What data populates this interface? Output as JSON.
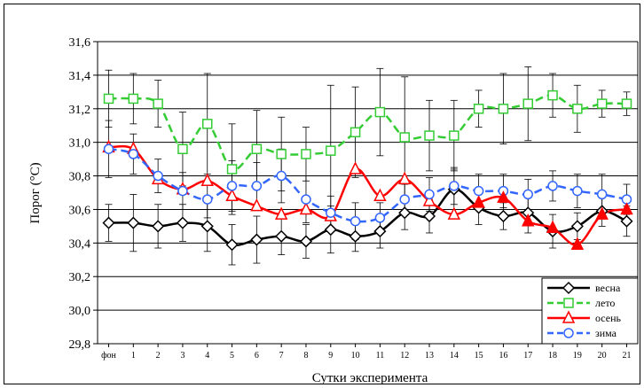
{
  "chart_data": {
    "type": "line",
    "xlabel": "Сутки эксперимента",
    "ylabel": "Порог (°С)",
    "categories": [
      "фон",
      "1",
      "2",
      "3",
      "4",
      "5",
      "6",
      "7",
      "8",
      "9",
      "10",
      "11",
      "12",
      "13",
      "14",
      "15",
      "16",
      "17",
      "18",
      "19",
      "20",
      "21"
    ],
    "ylim": [
      29.8,
      31.6
    ],
    "yticks": [
      "31,6",
      "31,4",
      "31,2",
      "31,0",
      "30,8",
      "30,6",
      "30,4",
      "30,2",
      "30,0",
      "29,8"
    ],
    "ytick_values": [
      31.6,
      31.4,
      31.2,
      31.0,
      30.8,
      30.6,
      30.4,
      30.2,
      30.0,
      29.8
    ],
    "grid": true,
    "legend_position": "bottom-right",
    "series": [
      {
        "name": "весна",
        "color": "#000000",
        "dash": "solid",
        "marker": "diamond",
        "values": [
          30.52,
          30.52,
          30.5,
          30.52,
          30.5,
          30.39,
          30.42,
          30.44,
          30.41,
          30.48,
          30.44,
          30.47,
          30.58,
          30.56,
          30.72,
          30.61,
          30.56,
          30.58,
          30.47,
          30.5,
          30.59,
          30.53
        ],
        "errors": [
          0.11,
          0.17,
          0.13,
          0.11,
          0.15,
          0.12,
          0.14,
          0.11,
          0.1,
          0.14,
          0.09,
          0.1,
          0.1,
          0.1,
          0.12,
          0.1,
          0.08,
          0.12,
          0.1,
          0.08,
          0.09,
          0.09
        ]
      },
      {
        "name": "лето",
        "color": "#33cc33",
        "dash": "dashed",
        "marker": "square-open",
        "values": [
          31.26,
          31.26,
          31.23,
          30.96,
          31.11,
          30.84,
          30.96,
          30.93,
          30.93,
          30.95,
          31.06,
          31.18,
          31.03,
          31.04,
          31.04,
          31.2,
          31.2,
          31.23,
          31.28,
          31.2,
          31.23,
          31.23
        ],
        "errors": [
          0.17,
          0.15,
          0.14,
          0.22,
          0.3,
          0.27,
          0.23,
          0.22,
          0.16,
          0.39,
          0.27,
          0.26,
          0.36,
          0.21,
          0.21,
          0.11,
          0.21,
          0.22,
          0.13,
          0.14,
          0.08,
          0.07
        ]
      },
      {
        "name": "осень",
        "color": "#ff0000",
        "dash": "solid",
        "marker": "triangle",
        "values": [
          30.97,
          30.96,
          30.78,
          30.72,
          30.77,
          30.68,
          30.62,
          30.57,
          30.6,
          30.56,
          30.84,
          30.68,
          30.78,
          30.65,
          30.57,
          30.64,
          30.67,
          30.53,
          30.49,
          30.39,
          30.57,
          30.6
        ],
        "errors": [
          0.0,
          0.0,
          0.0,
          0.0,
          0.0,
          0.0,
          0.0,
          0.0,
          0.0,
          0.0,
          0.0,
          0.0,
          0.0,
          0.0,
          0.0,
          0.0,
          0.0,
          0.0,
          0.0,
          0.0,
          0.0,
          0.0
        ]
      },
      {
        "name": "зима",
        "color": "#3366ff",
        "dash": "dashed",
        "marker": "circle-open",
        "values": [
          30.96,
          30.93,
          30.8,
          30.71,
          30.66,
          30.74,
          30.74,
          30.8,
          30.66,
          30.58,
          30.53,
          30.55,
          30.66,
          30.69,
          30.74,
          30.71,
          30.71,
          30.69,
          30.74,
          30.71,
          30.69,
          30.66
        ],
        "errors": [
          0.17,
          0.12,
          0.1,
          0.11,
          0.11,
          0.15,
          0.14,
          0.16,
          0.14,
          0.1,
          0.11,
          0.09,
          0.09,
          0.1,
          0.11,
          0.1,
          0.1,
          0.09,
          0.09,
          0.1,
          0.12,
          0.09
        ]
      }
    ]
  }
}
